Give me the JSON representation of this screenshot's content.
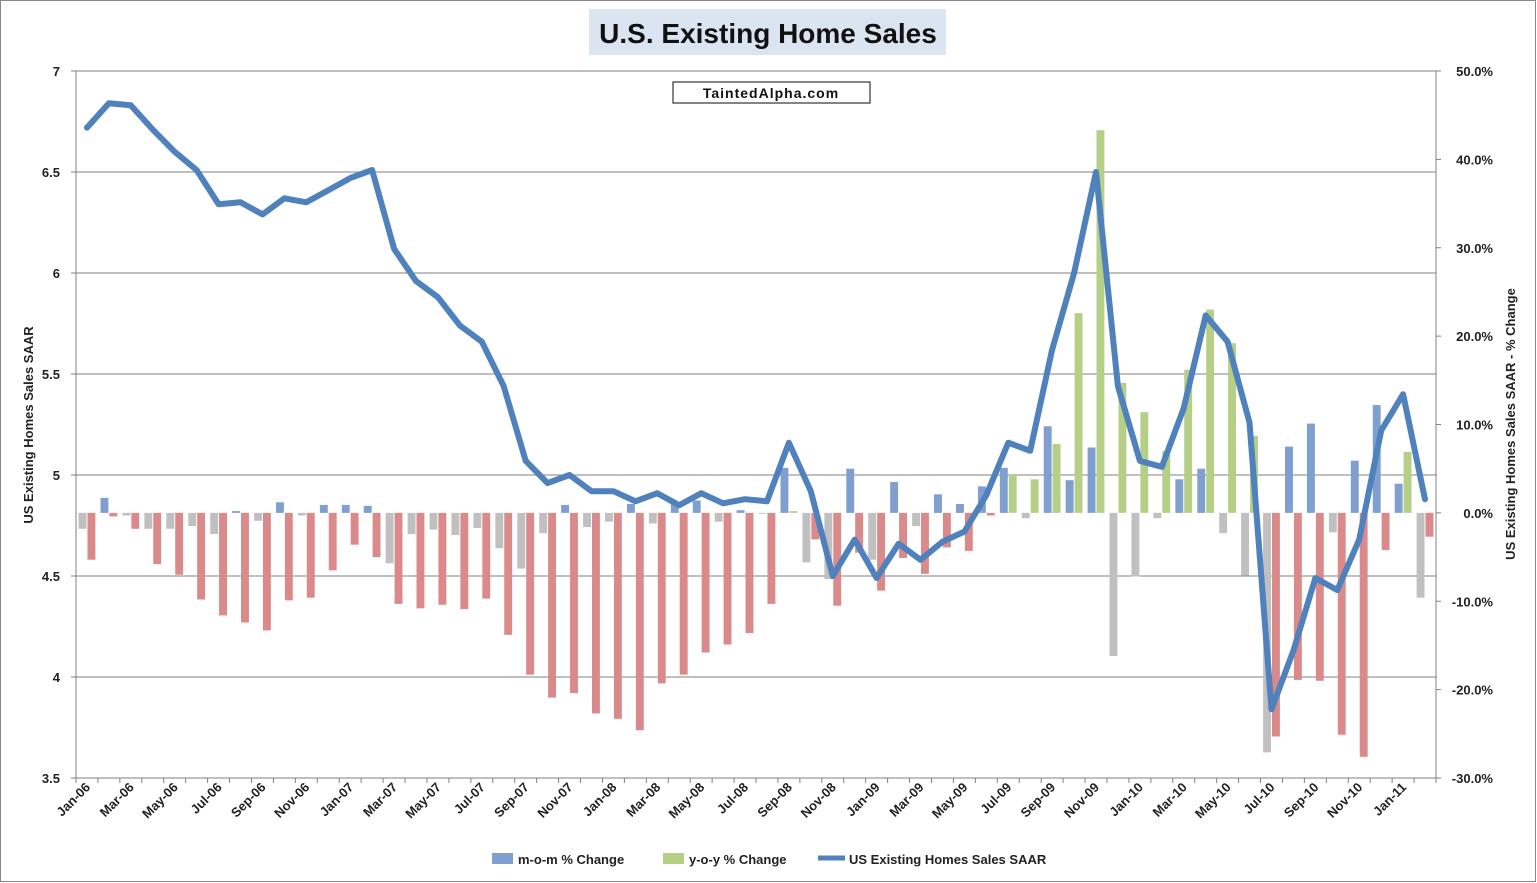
{
  "chart_data": {
    "type": "bar+line",
    "title": "U.S. Existing Home Sales",
    "watermark": "TaintedAlpha.com",
    "y_left_label": "US Existing Homes Sales SAAR",
    "y_right_label": "US Existing Homes Sales SAAR - % Change",
    "y_left_range": [
      3.5,
      7
    ],
    "y_left_ticks": [
      "3.5",
      "4",
      "4.5",
      "5",
      "5.5",
      "6",
      "6.5",
      "7"
    ],
    "y_right_range": [
      -30,
      50
    ],
    "y_right_ticks": [
      "-30.0%",
      "-20.0%",
      "-10.0%",
      "0.0%",
      "10.0%",
      "20.0%",
      "30.0%",
      "40.0%",
      "50.0%"
    ],
    "x_tick_labels": [
      "Jan-06",
      "Mar-06",
      "May-06",
      "Jul-06",
      "Sep-06",
      "Nov-06",
      "Jan-07",
      "Mar-07",
      "May-07",
      "Jul-07",
      "Sep-07",
      "Nov-07",
      "Jan-08",
      "Mar-08",
      "May-08",
      "Jul-08",
      "Sep-08",
      "Nov-08",
      "Jan-09",
      "Mar-09",
      "May-09",
      "Jul-09",
      "Sep-09",
      "Nov-09",
      "Jan-10",
      "Mar-10",
      "May-10",
      "Jul-10",
      "Sep-10",
      "Nov-10",
      "Jan-11"
    ],
    "months": [
      "Jan-06",
      "Feb-06",
      "Mar-06",
      "Apr-06",
      "May-06",
      "Jun-06",
      "Jul-06",
      "Aug-06",
      "Sep-06",
      "Oct-06",
      "Nov-06",
      "Dec-06",
      "Jan-07",
      "Feb-07",
      "Mar-07",
      "Apr-07",
      "May-07",
      "Jun-07",
      "Jul-07",
      "Aug-07",
      "Sep-07",
      "Oct-07",
      "Nov-07",
      "Dec-07",
      "Jan-08",
      "Feb-08",
      "Mar-08",
      "Apr-08",
      "May-08",
      "Jun-08",
      "Jul-08",
      "Aug-08",
      "Sep-08",
      "Oct-08",
      "Nov-08",
      "Dec-08",
      "Jan-09",
      "Feb-09",
      "Mar-09",
      "Apr-09",
      "May-09",
      "Jun-09",
      "Jul-09",
      "Aug-09",
      "Sep-09",
      "Oct-09",
      "Nov-09",
      "Dec-09",
      "Jan-10",
      "Feb-10",
      "Mar-10",
      "Apr-10",
      "May-10",
      "Jun-10",
      "Jul-10",
      "Aug-10",
      "Sep-10",
      "Oct-10",
      "Nov-10",
      "Dec-10",
      "Jan-11",
      "Feb-11"
    ],
    "legend": {
      "mom": "m-o-m % Change",
      "yoy": "y-o-y % Change",
      "sales": "US Existing Homes Sales SAAR"
    },
    "series": [
      {
        "name": "m-o-m % Change",
        "axis": "right",
        "color_positive": "#7f9fce",
        "color_negative": "#c0c0c0",
        "values": [
          -1.8,
          1.7,
          -0.3,
          -1.8,
          -1.8,
          -1.5,
          -2.4,
          0.2,
          -0.9,
          1.2,
          -0.3,
          0.9,
          0.9,
          0.8,
          -5.7,
          -2.4,
          -1.9,
          -2.5,
          -1.7,
          -4.0,
          -6.3,
          -2.3,
          0.9,
          -1.6,
          -1.0,
          1.0,
          -1.2,
          1.0,
          1.4,
          -1.0,
          0.3,
          -0.1,
          5.1,
          -5.6,
          -7.5,
          5.0,
          -5.3,
          3.5,
          -1.5,
          2.1,
          1.0,
          3.0,
          5.1,
          -0.6,
          9.8,
          3.7,
          7.4,
          -16.2,
          -7.2,
          -0.6,
          3.8,
          5.0,
          -2.3,
          -7.1,
          -27.1,
          7.5,
          10.1,
          -2.2,
          5.9,
          12.2,
          3.3,
          -9.6
        ]
      },
      {
        "name": "y-o-y % Change",
        "axis": "right",
        "color_positive": "#b5cf86",
        "color_negative": "#da8a8a",
        "values": [
          -5.3,
          -0.4,
          -1.8,
          -5.8,
          -7.0,
          -9.8,
          -11.6,
          -12.4,
          -13.3,
          -9.9,
          -9.6,
          -6.5,
          -3.6,
          -5.0,
          -10.3,
          -10.8,
          -10.4,
          -10.9,
          -9.7,
          -13.8,
          -18.3,
          -20.9,
          -20.4,
          -22.7,
          -23.3,
          -24.6,
          -19.3,
          -18.3,
          -15.8,
          -14.9,
          -13.6,
          -10.3,
          0.2,
          -3.0,
          -10.5,
          -4.5,
          -8.8,
          -5.1,
          -6.9,
          -3.9,
          -4.3,
          -0.3,
          4.3,
          3.8,
          7.8,
          22.6,
          43.3,
          14.7,
          11.4,
          7.0,
          16.2,
          23.0,
          19.2,
          8.7,
          -25.3,
          -18.9,
          -19.0,
          -25.1,
          -27.6,
          -4.2,
          6.9,
          -2.7
        ]
      },
      {
        "name": "US Existing Homes Sales SAAR",
        "axis": "left",
        "color": "#4f81bd",
        "values": [
          6.72,
          6.84,
          6.83,
          6.71,
          6.6,
          6.51,
          6.34,
          6.35,
          6.29,
          6.37,
          6.35,
          6.41,
          6.47,
          6.51,
          6.12,
          5.96,
          5.88,
          5.74,
          5.66,
          5.44,
          5.07,
          4.96,
          5.0,
          4.92,
          4.92,
          4.87,
          4.91,
          4.85,
          4.91,
          4.86,
          4.88,
          4.87,
          5.16,
          4.92,
          4.5,
          4.68,
          4.49,
          4.66,
          4.58,
          4.67,
          4.72,
          4.9,
          5.16,
          5.12,
          5.62,
          6.0,
          6.5,
          5.44,
          5.07,
          5.04,
          5.33,
          5.79,
          5.66,
          5.26,
          3.84,
          4.13,
          4.49,
          4.43,
          4.68,
          5.22,
          5.4,
          4.88
        ]
      }
    ]
  }
}
